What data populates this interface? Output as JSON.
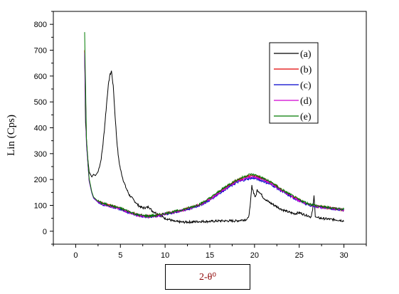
{
  "chart_data": {
    "type": "line",
    "title": "",
    "xlabel": "2-θ⁰",
    "ylabel": "Lin (Cps)",
    "xlim": [
      -2.5,
      32.5
    ],
    "ylim": [
      -50,
      850
    ],
    "xticks": [
      0,
      5,
      10,
      15,
      20,
      25,
      30
    ],
    "yticks": [
      0,
      100,
      200,
      300,
      400,
      500,
      600,
      700,
      800
    ],
    "legend_position": "top-right",
    "grid": false,
    "series": [
      {
        "name": "(a)",
        "color": "#000000",
        "x": [
          1.0,
          1.1,
          1.3,
          1.5,
          1.8,
          2.0,
          2.2,
          2.5,
          2.8,
          3.0,
          3.2,
          3.4,
          3.6,
          3.8,
          4.0,
          4.2,
          4.4,
          4.6,
          4.8,
          5.0,
          5.3,
          5.6,
          6.0,
          6.5,
          7.0,
          7.5,
          8.0,
          8.2,
          8.5,
          9.0,
          9.5,
          10.0,
          10.5,
          11.0,
          12.0,
          13.0,
          14.0,
          15.0,
          16.0,
          17.0,
          18.0,
          18.5,
          19.0,
          19.3,
          19.5,
          19.7,
          19.9,
          20.1,
          20.3,
          20.6,
          21.0,
          21.5,
          22.0,
          22.5,
          23.0,
          23.5,
          24.0,
          24.5,
          25.0,
          25.5,
          26.0,
          26.3,
          26.5,
          26.65,
          26.8,
          27.0,
          27.5,
          28.0,
          28.5,
          29.0,
          29.5,
          30.0
        ],
        "values": [
          690,
          420,
          300,
          230,
          210,
          220,
          215,
          230,
          270,
          320,
          390,
          470,
          550,
          600,
          620,
          560,
          450,
          350,
          280,
          240,
          200,
          170,
          140,
          120,
          100,
          90,
          92,
          95,
          80,
          70,
          60,
          50,
          45,
          38,
          35,
          36,
          38,
          38,
          40,
          40,
          40,
          43,
          45,
          50,
          90,
          175,
          150,
          130,
          160,
          150,
          130,
          115,
          105,
          95,
          85,
          78,
          72,
          68,
          72,
          65,
          60,
          55,
          80,
          135,
          60,
          52,
          50,
          48,
          46,
          45,
          43,
          40
        ]
      },
      {
        "name": "(b)",
        "color": "#e00000",
        "x": [
          1.0,
          1.2,
          1.5,
          1.8,
          2.0,
          2.5,
          3.0,
          4.0,
          5.0,
          6.0,
          7.0,
          8.0,
          9.0,
          10.0,
          11.0,
          12.0,
          13.0,
          14.0,
          15.0,
          16.0,
          17.0,
          18.0,
          19.0,
          19.5,
          20.0,
          20.5,
          21.0,
          22.0,
          23.0,
          24.0,
          25.0,
          26.0,
          27.0,
          28.0,
          29.0,
          30.0
        ],
        "values": [
          700,
          350,
          200,
          150,
          130,
          115,
          108,
          98,
          88,
          75,
          62,
          58,
          60,
          68,
          75,
          82,
          92,
          105,
          125,
          150,
          175,
          195,
          210,
          215,
          215,
          210,
          202,
          185,
          160,
          140,
          120,
          105,
          97,
          92,
          87,
          82
        ]
      },
      {
        "name": "(c)",
        "color": "#0000cc",
        "x": [
          1.0,
          1.2,
          1.5,
          1.8,
          2.0,
          2.5,
          3.0,
          4.0,
          5.0,
          6.0,
          7.0,
          8.0,
          9.0,
          10.0,
          11.0,
          12.0,
          13.0,
          14.0,
          15.0,
          16.0,
          17.0,
          18.0,
          19.0,
          19.5,
          20.0,
          20.5,
          21.0,
          22.0,
          23.0,
          24.0,
          25.0,
          26.0,
          27.0,
          28.0,
          29.0,
          30.0
        ],
        "values": [
          680,
          340,
          195,
          148,
          128,
          112,
          104,
          95,
          85,
          72,
          60,
          56,
          58,
          66,
          72,
          80,
          90,
          102,
          120,
          145,
          168,
          188,
          200,
          205,
          205,
          200,
          193,
          178,
          155,
          135,
          117,
          102,
          95,
          90,
          86,
          82
        ]
      },
      {
        "name": "(d)",
        "color": "#d000d0",
        "x": [
          1.0,
          1.2,
          1.5,
          1.8,
          2.0,
          2.5,
          3.0,
          4.0,
          5.0,
          6.0,
          7.0,
          8.0,
          9.0,
          10.0,
          11.0,
          12.0,
          13.0,
          14.0,
          15.0,
          16.0,
          17.0,
          18.0,
          19.0,
          19.5,
          20.0,
          20.5,
          21.0,
          22.0,
          23.0,
          24.0,
          25.0,
          26.0,
          27.0,
          28.0,
          29.0,
          30.0
        ],
        "values": [
          690,
          345,
          198,
          150,
          130,
          113,
          106,
          96,
          86,
          73,
          61,
          57,
          59,
          67,
          74,
          81,
          91,
          104,
          123,
          148,
          172,
          192,
          205,
          210,
          210,
          205,
          198,
          182,
          158,
          138,
          118,
          104,
          96,
          91,
          87,
          83
        ]
      },
      {
        "name": "(e)",
        "color": "#007a00",
        "x": [
          1.0,
          1.2,
          1.5,
          1.8,
          2.0,
          2.5,
          3.0,
          4.0,
          5.0,
          6.0,
          7.0,
          8.0,
          9.0,
          10.0,
          11.0,
          12.0,
          13.0,
          14.0,
          15.0,
          16.0,
          17.0,
          18.0,
          19.0,
          19.5,
          20.0,
          20.5,
          21.0,
          22.0,
          23.0,
          24.0,
          25.0,
          26.0,
          27.0,
          28.0,
          29.0,
          30.0
        ],
        "values": [
          770,
          360,
          205,
          152,
          132,
          116,
          108,
          99,
          89,
          76,
          63,
          59,
          61,
          69,
          76,
          84,
          94,
          107,
          128,
          153,
          178,
          198,
          213,
          220,
          218,
          212,
          204,
          187,
          162,
          142,
          122,
          107,
          98,
          93,
          89,
          85
        ]
      }
    ]
  }
}
